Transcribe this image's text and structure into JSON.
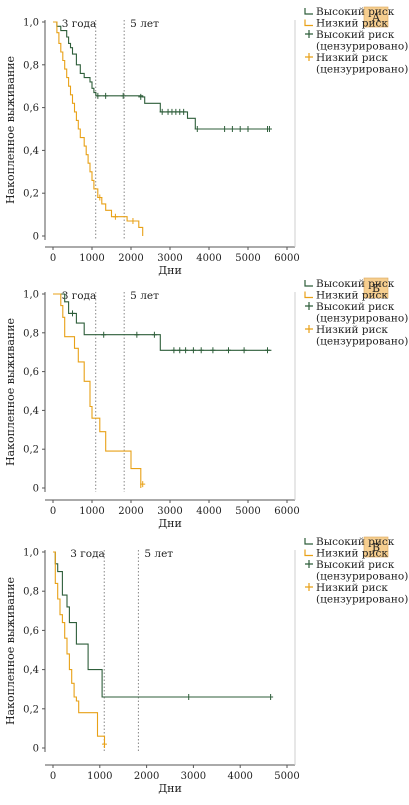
{
  "colors": {
    "high": "#2e5e3a",
    "low": "#e8a117",
    "badge": "#f6ce8f",
    "axis": "#555555",
    "vline": "#888888"
  },
  "legend": {
    "high": "Высокий риск",
    "low": "Низкий риск",
    "high_censored_1": "Высокий риск",
    "high_censored_2": "(цензурировано)",
    "low_censored_1": "Низкий риск",
    "low_censored_2": "(цензурировано)"
  },
  "chart_data": [
    {
      "type": "line",
      "panel_label": "А",
      "xlabel": "Дни",
      "ylabel": "Накопленное выживание",
      "xlim": [
        0,
        6000
      ],
      "ylim": [
        0,
        1
      ],
      "xticks": [
        0,
        1000,
        2000,
        3000,
        4000,
        5000,
        6000
      ],
      "yticks": [
        "0",
        "0,2",
        "0,4",
        "0,6",
        "0,8",
        "1,0"
      ],
      "vlines": [
        {
          "x": 1095,
          "label": "3 года"
        },
        {
          "x": 1825,
          "label": "5 лет"
        }
      ],
      "series": [
        {
          "name": "Высокий риск",
          "steps": [
            [
              0,
              1.0
            ],
            [
              100,
              0.98
            ],
            [
              200,
              0.96
            ],
            [
              350,
              0.93
            ],
            [
              400,
              0.9
            ],
            [
              450,
              0.88
            ],
            [
              500,
              0.85
            ],
            [
              600,
              0.8
            ],
            [
              700,
              0.76
            ],
            [
              800,
              0.74
            ],
            [
              950,
              0.72
            ],
            [
              1000,
              0.69
            ],
            [
              1050,
              0.67
            ],
            [
              1100,
              0.655
            ],
            [
              2300,
              0.65
            ],
            [
              2350,
              0.62
            ],
            [
              2750,
              0.58
            ],
            [
              3450,
              0.55
            ],
            [
              3650,
              0.5
            ],
            [
              5600,
              0.5
            ]
          ],
          "censored": [
            [
              1150,
              0.655
            ],
            [
              1350,
              0.655
            ],
            [
              1800,
              0.655
            ],
            [
              2250,
              0.65
            ],
            [
              2800,
              0.58
            ],
            [
              2950,
              0.58
            ],
            [
              3050,
              0.58
            ],
            [
              3150,
              0.58
            ],
            [
              3250,
              0.58
            ],
            [
              3350,
              0.58
            ],
            [
              3700,
              0.5
            ],
            [
              4400,
              0.5
            ],
            [
              4600,
              0.5
            ],
            [
              4800,
              0.5
            ],
            [
              5000,
              0.5
            ],
            [
              5500,
              0.5
            ],
            [
              5550,
              0.5
            ]
          ]
        },
        {
          "name": "Низкий риск",
          "steps": [
            [
              0,
              1.0
            ],
            [
              100,
              0.95
            ],
            [
              150,
              0.9
            ],
            [
              200,
              0.86
            ],
            [
              250,
              0.82
            ],
            [
              300,
              0.78
            ],
            [
              350,
              0.74
            ],
            [
              400,
              0.7
            ],
            [
              450,
              0.66
            ],
            [
              500,
              0.62
            ],
            [
              550,
              0.58
            ],
            [
              600,
              0.54
            ],
            [
              650,
              0.5
            ],
            [
              700,
              0.46
            ],
            [
              800,
              0.42
            ],
            [
              850,
              0.38
            ],
            [
              900,
              0.34
            ],
            [
              950,
              0.3
            ],
            [
              1000,
              0.26
            ],
            [
              1050,
              0.22
            ],
            [
              1150,
              0.18
            ],
            [
              1250,
              0.15
            ],
            [
              1350,
              0.12
            ],
            [
              1500,
              0.09
            ],
            [
              1900,
              0.07
            ],
            [
              2200,
              0.04
            ],
            [
              2300,
              0.0
            ]
          ],
          "censored": [
            [
              1200,
              0.18
            ],
            [
              1600,
              0.09
            ],
            [
              2050,
              0.07
            ]
          ]
        }
      ]
    },
    {
      "type": "line",
      "panel_label": "Б",
      "xlabel": "Дни",
      "ylabel": "Накопленное выживание",
      "xlim": [
        0,
        6000
      ],
      "ylim": [
        0,
        1
      ],
      "xticks": [
        0,
        1000,
        2000,
        3000,
        4000,
        5000,
        6000
      ],
      "yticks": [
        "0",
        "0,2",
        "0,4",
        "0,6",
        "0,8",
        "1,0"
      ],
      "vlines": [
        {
          "x": 1095,
          "label": "3 года"
        },
        {
          "x": 1825,
          "label": "5 лет"
        }
      ],
      "series": [
        {
          "name": "Высокий риск",
          "steps": [
            [
              0,
              1.0
            ],
            [
              300,
              0.96
            ],
            [
              400,
              0.9
            ],
            [
              600,
              0.85
            ],
            [
              800,
              0.79
            ],
            [
              2150,
              0.79
            ],
            [
              2100,
              0.79
            ],
            [
              2750,
              0.71
            ],
            [
              5600,
              0.71
            ]
          ],
          "censored": [
            [
              500,
              0.9
            ],
            [
              1300,
              0.79
            ],
            [
              2150,
              0.79
            ],
            [
              2600,
              0.79
            ],
            [
              3100,
              0.71
            ],
            [
              3250,
              0.71
            ],
            [
              3400,
              0.71
            ],
            [
              3600,
              0.71
            ],
            [
              3800,
              0.71
            ],
            [
              4100,
              0.71
            ],
            [
              4500,
              0.71
            ],
            [
              4900,
              0.71
            ],
            [
              5500,
              0.71
            ]
          ]
        },
        {
          "name": "Низкий риск",
          "steps": [
            [
              0,
              1.0
            ],
            [
              200,
              0.94
            ],
            [
              250,
              0.88
            ],
            [
              300,
              0.78
            ],
            [
              550,
              0.72
            ],
            [
              650,
              0.65
            ],
            [
              800,
              0.55
            ],
            [
              950,
              0.42
            ],
            [
              1000,
              0.36
            ],
            [
              1200,
              0.29
            ],
            [
              1350,
              0.19
            ],
            [
              2000,
              0.1
            ],
            [
              2250,
              0.0
            ]
          ],
          "censored": [
            [
              2300,
              0.02
            ]
          ]
        }
      ]
    },
    {
      "type": "line",
      "panel_label": "В",
      "xlabel": "Дни",
      "ylabel": "Накопленное выживание",
      "xlim": [
        0,
        5000
      ],
      "ylim": [
        0,
        1
      ],
      "xticks": [
        0,
        1000,
        2000,
        3000,
        4000,
        5000
      ],
      "yticks": [
        "0",
        "0,2",
        "0,4",
        "0,6",
        "0,8",
        "1,0"
      ],
      "vlines": [
        {
          "x": 1095,
          "label": "3 года"
        },
        {
          "x": 1825,
          "label": "5 лет"
        }
      ],
      "series": [
        {
          "name": "Высокий риск",
          "steps": [
            [
              0,
              1.0
            ],
            [
              50,
              0.94
            ],
            [
              100,
              0.9
            ],
            [
              200,
              0.78
            ],
            [
              300,
              0.72
            ],
            [
              350,
              0.64
            ],
            [
              500,
              0.53
            ],
            [
              750,
              0.4
            ],
            [
              1050,
              0.26
            ],
            [
              4650,
              0.26
            ]
          ],
          "censored": [
            [
              2900,
              0.26
            ],
            [
              4650,
              0.26
            ]
          ]
        },
        {
          "name": "Низкий риск",
          "steps": [
            [
              0,
              1.0
            ],
            [
              50,
              0.84
            ],
            [
              100,
              0.76
            ],
            [
              150,
              0.68
            ],
            [
              200,
              0.64
            ],
            [
              250,
              0.56
            ],
            [
              300,
              0.48
            ],
            [
              350,
              0.4
            ],
            [
              400,
              0.33
            ],
            [
              450,
              0.26
            ],
            [
              500,
              0.24
            ],
            [
              550,
              0.18
            ],
            [
              950,
              0.06
            ],
            [
              1100,
              0.0
            ]
          ],
          "censored": [
            [
              1100,
              0.02
            ]
          ]
        }
      ]
    }
  ]
}
